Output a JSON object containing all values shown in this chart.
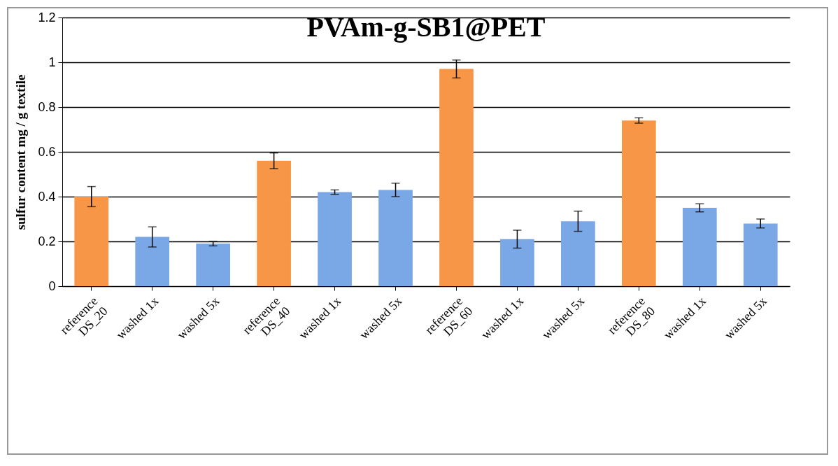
{
  "chart_data": {
    "type": "bar",
    "title": "PVAm-g-SB1@PET",
    "ylabel": "sulfur content mg / g textile",
    "categories": [
      "reference\nDS_20",
      "washed 1x",
      "washed 5x",
      "reference\nDS_40",
      "washed 1x",
      "washed 5x",
      "reference\nDS_60",
      "washed 1x",
      "washed 5x",
      "reference\nDS_80",
      "washed 1x",
      "washed 5x"
    ],
    "values": [
      0.4,
      0.22,
      0.19,
      0.56,
      0.42,
      0.43,
      0.97,
      0.21,
      0.29,
      0.74,
      0.35,
      0.28
    ],
    "errors": [
      0.045,
      0.045,
      0.01,
      0.035,
      0.01,
      0.03,
      0.04,
      0.04,
      0.045,
      0.012,
      0.018,
      0.02
    ],
    "colors": [
      "#f79646",
      "#7aa7e6",
      "#7aa7e6",
      "#f79646",
      "#7aa7e6",
      "#7aa7e6",
      "#f79646",
      "#7aa7e6",
      "#7aa7e6",
      "#f79646",
      "#7aa7e6",
      "#7aa7e6"
    ],
    "ylim": [
      0,
      1.2
    ],
    "yticks": [
      0,
      0.2,
      0.4,
      0.6,
      0.8,
      1,
      1.2
    ],
    "grid": "y"
  }
}
